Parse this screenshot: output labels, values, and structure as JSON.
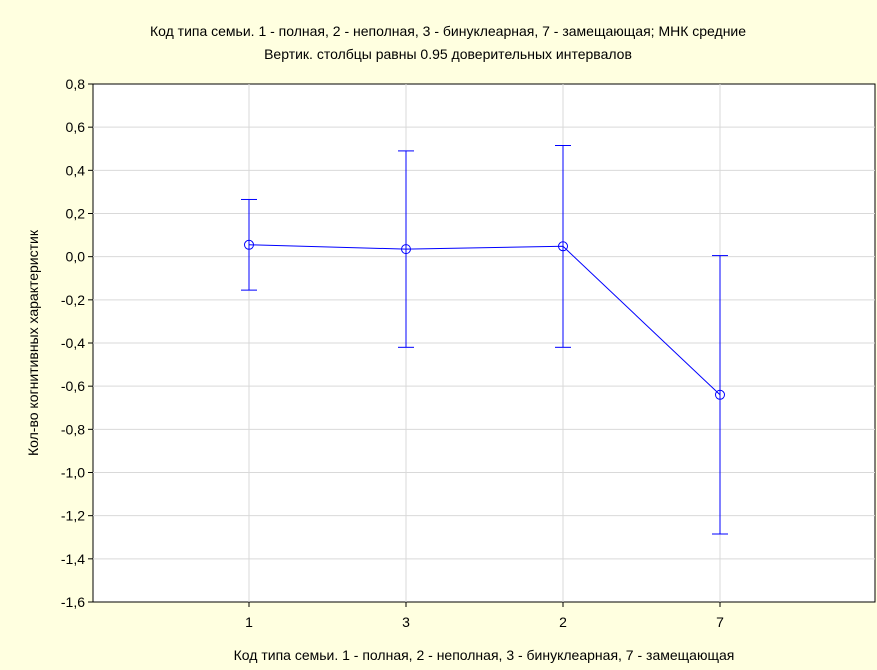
{
  "chart_data": {
    "type": "line",
    "title": "Код типа семьи. 1 - полная, 2 - неполная, 3 - бинуклеарная, 7 - замещающая; МНК средние",
    "subtitle": "Вертик. столбцы равны 0.95 доверительных интервалов",
    "xlabel": "Код типа семьи. 1 - полная, 2 - неполная, 3 - бинуклеарная, 7 - замещающая",
    "ylabel": "Кол-во когнитивных характеристик",
    "categories": [
      "1",
      "3",
      "2",
      "7"
    ],
    "values": [
      0.055,
      0.035,
      0.048,
      -0.64
    ],
    "ci_upper": [
      0.265,
      0.49,
      0.515,
      0.005
    ],
    "ci_lower": [
      -0.155,
      -0.42,
      -0.42,
      -1.285
    ],
    "ylim": [
      -1.6,
      0.8
    ],
    "yticks": [
      "0,8",
      "0,6",
      "0,4",
      "0,2",
      "0,0",
      "-0,2",
      "-0,4",
      "-0,6",
      "-0,8",
      "-1,0",
      "-1,2",
      "-1,4",
      "-1,6"
    ],
    "ytick_values": [
      0.8,
      0.6,
      0.4,
      0.2,
      0.0,
      -0.2,
      -0.4,
      -0.6,
      -0.8,
      -1.0,
      -1.2,
      -1.4,
      -1.6
    ],
    "grid": true,
    "colors": {
      "series": "#0000ff",
      "background": "#ffffe0",
      "plot_area": "#ffffff",
      "grid": "#d9d9d9",
      "axis": "#000000"
    }
  }
}
